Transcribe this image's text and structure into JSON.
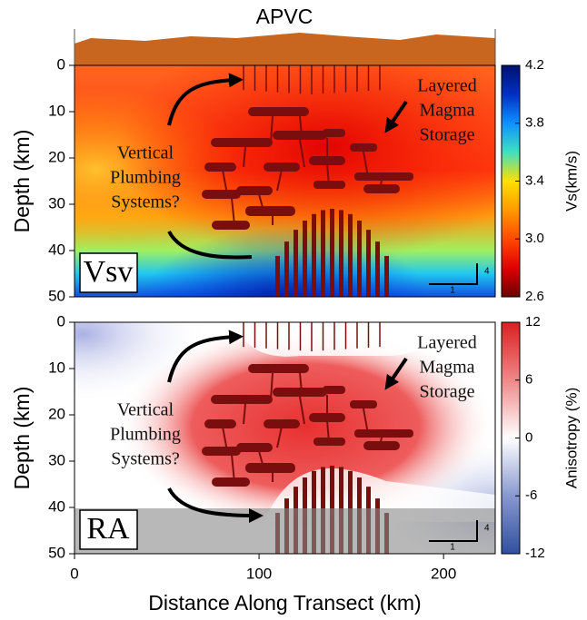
{
  "chart_data": [
    {
      "type": "heatmap",
      "title": "APVC",
      "ylabel": "Depth (km)",
      "ylim": [
        0,
        50
      ],
      "yticks": [
        0,
        10,
        20,
        30,
        40,
        50
      ],
      "yaxis_inverted": true,
      "panel_label": "Vsv",
      "annotations": [
        [
          "Layered",
          "Magma",
          "Storage"
        ],
        [
          "Vertical",
          "Plumbing",
          "Systems?"
        ]
      ],
      "scale_bar": {
        "vertical_label": "4",
        "horizontal_label": "1"
      },
      "colorbar": {
        "label": "Vs(km/s)",
        "lim": [
          2.6,
          4.2
        ],
        "ticks": [
          4.2,
          3.8,
          3.4,
          {
            "value": 3,
            "label": "3.0"
          },
          2.6
        ],
        "colormap": [
          "#6a0000",
          "#e00000",
          "#ff4a00",
          "#ff9a00",
          "#ffe000",
          "#40e0c0",
          "#1090ff",
          "#0030c0",
          "#001070"
        ]
      }
    },
    {
      "type": "heatmap",
      "xlabel": "Distance Along Transect (km)",
      "ylabel": "Depth (km)",
      "xlim": [
        0,
        228
      ],
      "xticks": [
        0,
        100,
        200
      ],
      "ylim": [
        0,
        50
      ],
      "yticks": [
        0,
        10,
        20,
        30,
        40,
        50
      ],
      "yaxis_inverted": true,
      "panel_label": "RA",
      "annotations": [
        [
          "Layered",
          "Magma",
          "Storage"
        ],
        [
          "Vertical",
          "Plumbing",
          "Systems?"
        ]
      ],
      "scale_bar": {
        "vertical_label": "4",
        "horizontal_label": "1"
      },
      "colorbar": {
        "label": "Anisotropy (%)",
        "lim": [
          -12,
          12
        ],
        "ticks": [
          12,
          6,
          0,
          -6,
          -12
        ],
        "colormap": [
          "#3050a0",
          "#8898d0",
          "#ffffff",
          "#f08888",
          "#d82020"
        ]
      }
    }
  ]
}
